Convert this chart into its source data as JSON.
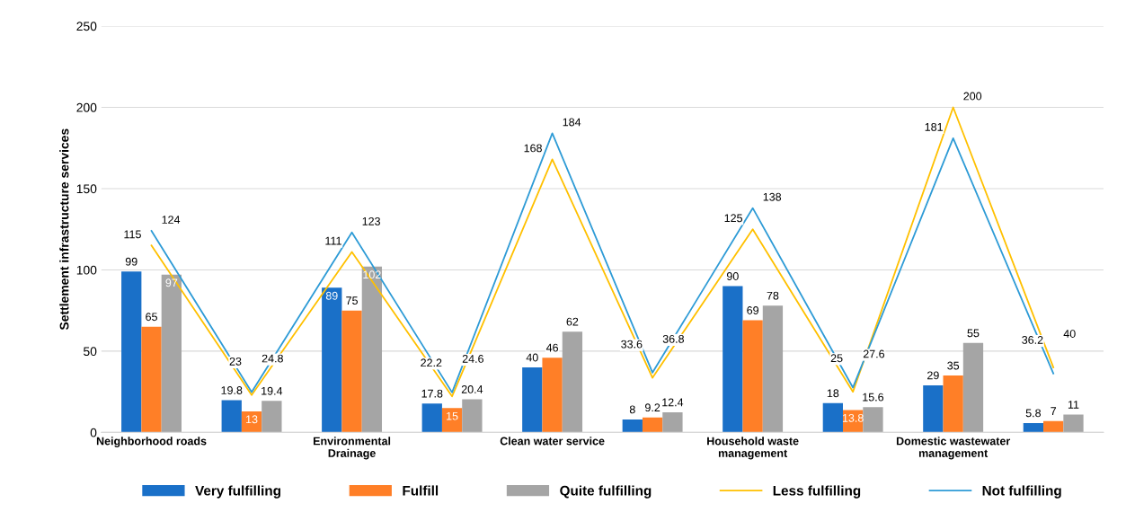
{
  "chart_data": {
    "type": "bar",
    "ylabel": "Settlement infrastructure services",
    "categories": [
      "Neighborhood roads",
      null,
      "Environmental\nDrainage",
      null,
      "Clean water service",
      null,
      "Household waste\nmanagement",
      null,
      "Domestic wastewater\nmanagement",
      null
    ],
    "series": [
      {
        "name": "Very fulfilling",
        "color": "#1a70c8",
        "values": [
          99,
          19.8,
          89,
          17.8,
          40,
          8,
          90,
          18,
          29,
          5.8
        ]
      },
      {
        "name": "Fulfill",
        "color": "#ff7f27",
        "values": [
          65,
          13,
          75,
          15,
          46,
          9.2,
          69,
          13.8,
          35,
          7
        ]
      },
      {
        "name": "Quite fulfilling",
        "color": "#a5a5a5",
        "values": [
          97,
          19.4,
          102,
          20.4,
          62,
          12.4,
          78,
          15.6,
          55,
          11
        ]
      },
      {
        "name": "Less fulfilling",
        "type": "line",
        "color": "#ffc000",
        "values": [
          115,
          23,
          111,
          22.2,
          168,
          33.6,
          125,
          25,
          200,
          40
        ]
      },
      {
        "name": "Not fulfilling",
        "type": "line",
        "color": "#2e9bd6",
        "values": [
          124,
          24.8,
          123,
          24.6,
          184,
          36.8,
          138,
          27.6,
          181,
          36.2
        ]
      }
    ],
    "ylim": [
      0,
      250
    ],
    "yticks": [
      0,
      50,
      100,
      150,
      200,
      250
    ],
    "grid": "y",
    "legend": "bottom",
    "data_labels": true,
    "marker": "none"
  }
}
